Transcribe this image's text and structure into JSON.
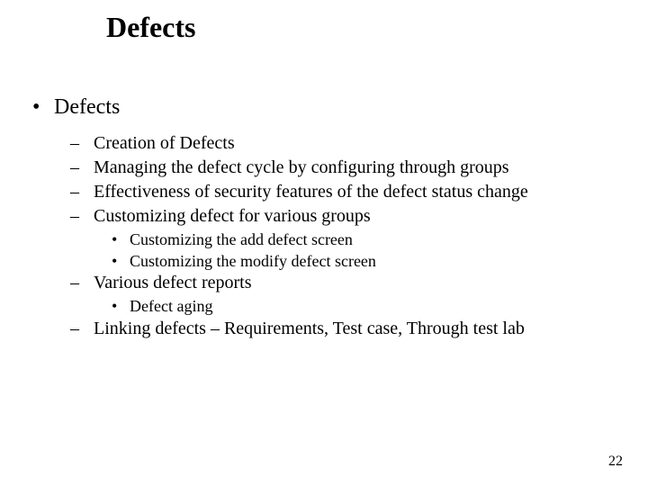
{
  "title": "Defects",
  "pageNumber": "22",
  "l1": {
    "text": "Defects"
  },
  "l2": {
    "a": "Creation of Defects",
    "b": "Managing the defect cycle by configuring through groups",
    "c": "Effectiveness of security features of the defect status change",
    "d": "Customizing defect for various groups",
    "e": "Various defect reports",
    "f": "Linking defects – Requirements, Test case, Through test lab"
  },
  "l3": {
    "a": "Customizing the add defect screen",
    "b": "Customizing the modify defect screen",
    "c": "Defect aging"
  },
  "markers": {
    "dot": "•",
    "dash": "–"
  }
}
